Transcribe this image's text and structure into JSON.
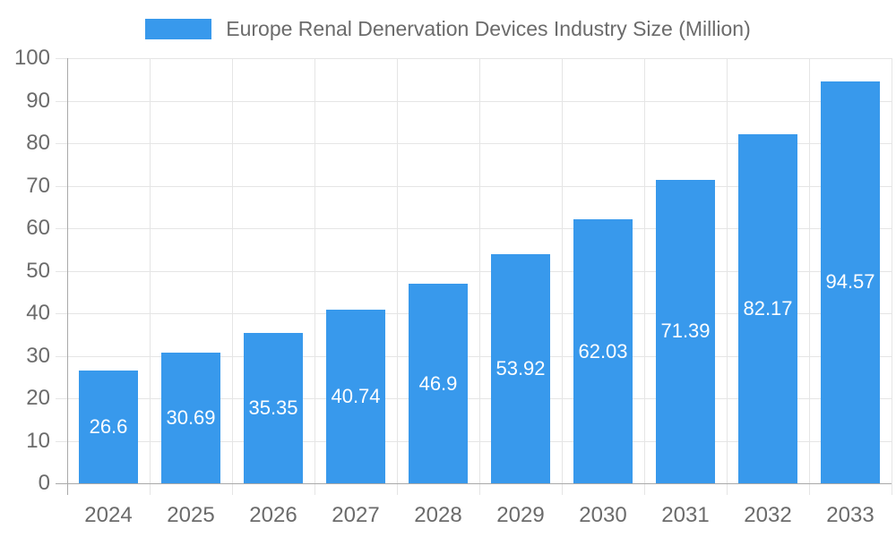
{
  "legend": {
    "item_label": "Europe Renal Denervation Devices Industry Size (Million)"
  },
  "chart_data": {
    "type": "bar",
    "title": "Europe Renal Denervation Devices Industry Size (Million)",
    "categories": [
      "2024",
      "2025",
      "2026",
      "2027",
      "2028",
      "2029",
      "2030",
      "2031",
      "2032",
      "2033"
    ],
    "values": [
      26.6,
      30.69,
      35.35,
      40.74,
      46.9,
      53.92,
      62.03,
      71.39,
      82.17,
      94.57
    ],
    "data_labels": [
      "26.6",
      "30.69",
      "35.35",
      "40.74",
      "46.9",
      "53.92",
      "62.03",
      "71.39",
      "82.17",
      "94.57"
    ],
    "y_ticks": [
      0,
      10,
      20,
      30,
      40,
      50,
      60,
      70,
      80,
      90,
      100
    ],
    "ylim": [
      0,
      100
    ],
    "xlabel": "",
    "ylabel": "",
    "grid": "on",
    "legend_position": "top",
    "colors": {
      "bar": "#3899EC",
      "grid": "#e5e5e5",
      "axis": "#a9a9a9",
      "text": "#6b6b6b",
      "value_label": "#ffffff"
    }
  }
}
